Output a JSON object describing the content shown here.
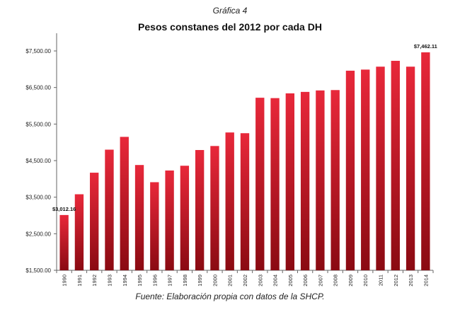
{
  "header": {
    "figure_label": "Gráfica 4",
    "title": "Pesos constanes del 2012 por cada DH"
  },
  "footer": {
    "source": "Fuente: Elaboración propia con datos de la SHCP."
  },
  "colors": {
    "bar_top": "#e8283a",
    "bar_bottom": "#8a0a12"
  },
  "chart_data": {
    "type": "bar",
    "title": "Pesos constanes del 2012 por cada DH",
    "xlabel": "",
    "ylabel": "",
    "categories": [
      "1990",
      "1991",
      "1992",
      "1993",
      "1994",
      "1995",
      "1996",
      "1997",
      "1998",
      "1999",
      "2000",
      "2001",
      "2002",
      "2003",
      "2004",
      "2005",
      "2006",
      "2007",
      "2008",
      "2009",
      "2010",
      "2011",
      "2012",
      "2013",
      "2014"
    ],
    "values": [
      3012.16,
      3580,
      4170,
      4800,
      5150,
      4380,
      3910,
      4230,
      4360,
      4790,
      4900,
      5270,
      5250,
      6220,
      6210,
      6340,
      6380,
      6420,
      6430,
      6960,
      6990,
      7070,
      7230,
      7070,
      7462.11
    ],
    "ylim": [
      1500,
      7500
    ],
    "yticks": [
      1500,
      2500,
      3500,
      4500,
      5500,
      6500,
      7500
    ],
    "ytick_labels": [
      "$1,500.00",
      "$2,500.00",
      "$3,500.00",
      "$4,500.00",
      "$5,500.00",
      "$6,500.00",
      "$7,500.00"
    ],
    "data_labels": [
      {
        "category": "1990",
        "text": "$3,012.16"
      },
      {
        "category": "2014",
        "text": "$7,462.11"
      }
    ],
    "grid": false,
    "legend": "none"
  }
}
